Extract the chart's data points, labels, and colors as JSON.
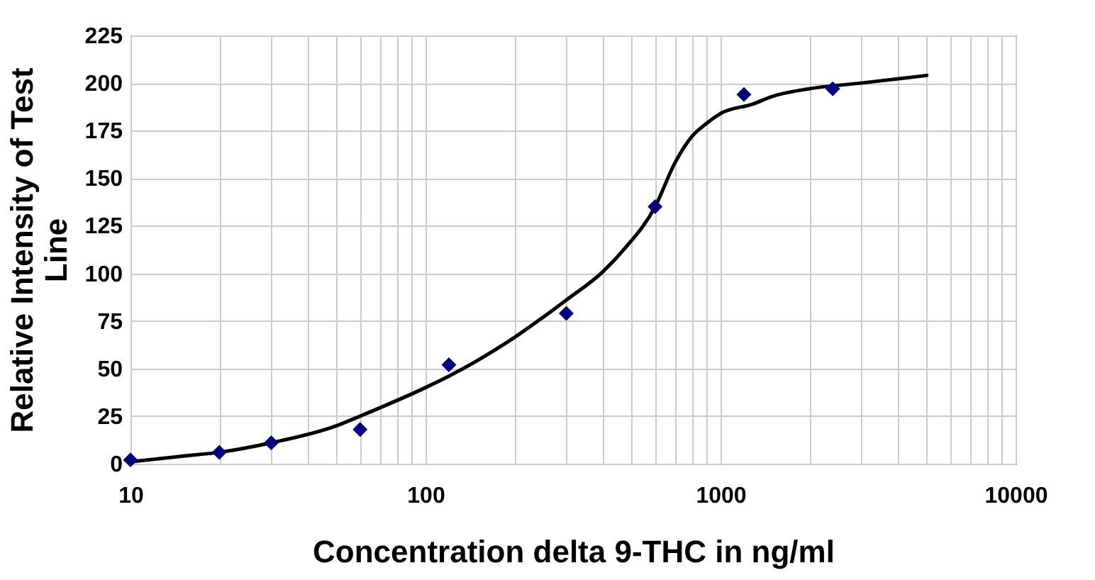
{
  "chart_data": {
    "type": "scatter",
    "xlabel": "Concentration delta 9-THC in ng/ml",
    "ylabel": "Relative Intensity of Test Line",
    "log": "x",
    "grid": true,
    "marker": "diamond",
    "xlim": [
      10,
      10000
    ],
    "ylim": [
      0,
      225
    ],
    "xticks": [
      10,
      {
        "value": 20,
        "label": null
      },
      {
        "value": 30,
        "label": null
      },
      {
        "value": 40,
        "label": null
      },
      {
        "value": 50,
        "label": null
      },
      {
        "value": 60,
        "label": null
      },
      {
        "value": 70,
        "label": null
      },
      {
        "value": 80,
        "label": null
      },
      {
        "value": 90,
        "label": null
      },
      100,
      {
        "value": 200,
        "label": null
      },
      {
        "value": 300,
        "label": null
      },
      {
        "value": 400,
        "label": null
      },
      {
        "value": 500,
        "label": null
      },
      {
        "value": 600,
        "label": null
      },
      {
        "value": 700,
        "label": null
      },
      {
        "value": 800,
        "label": null
      },
      {
        "value": 900,
        "label": null
      },
      1000,
      {
        "value": 2000,
        "label": null
      },
      {
        "value": 3000,
        "label": null
      },
      {
        "value": 4000,
        "label": null
      },
      {
        "value": 5000,
        "label": null
      },
      {
        "value": 6000,
        "label": null
      },
      {
        "value": 7000,
        "label": null
      },
      {
        "value": 8000,
        "label": null
      },
      {
        "value": 9000,
        "label": null
      },
      10000
    ],
    "yticks": [
      0,
      25,
      50,
      75,
      100,
      125,
      150,
      175,
      200,
      225
    ],
    "series": [
      {
        "type": "line",
        "marker": "none",
        "color": "#000000",
        "x": [
          10,
          15,
          20,
          30,
          50,
          60,
          100,
          120,
          190,
          300,
          400,
          473,
          600,
          700,
          800,
          900,
          1000,
          1290,
          1500,
          2000,
          3000,
          5000
        ],
        "values": [
          1,
          4,
          6,
          11,
          20,
          25,
          40,
          46,
          64,
          86,
          101,
          113,
          135,
          158,
          172,
          179,
          184,
          189,
          193,
          197,
          200,
          204
        ]
      },
      {
        "color": "#000080",
        "x": [
          10,
          20,
          30,
          60,
          120,
          300,
          600,
          1200,
          2400
        ],
        "values": [
          2,
          6,
          11,
          18,
          52,
          79,
          135,
          194,
          197
        ]
      }
    ]
  }
}
